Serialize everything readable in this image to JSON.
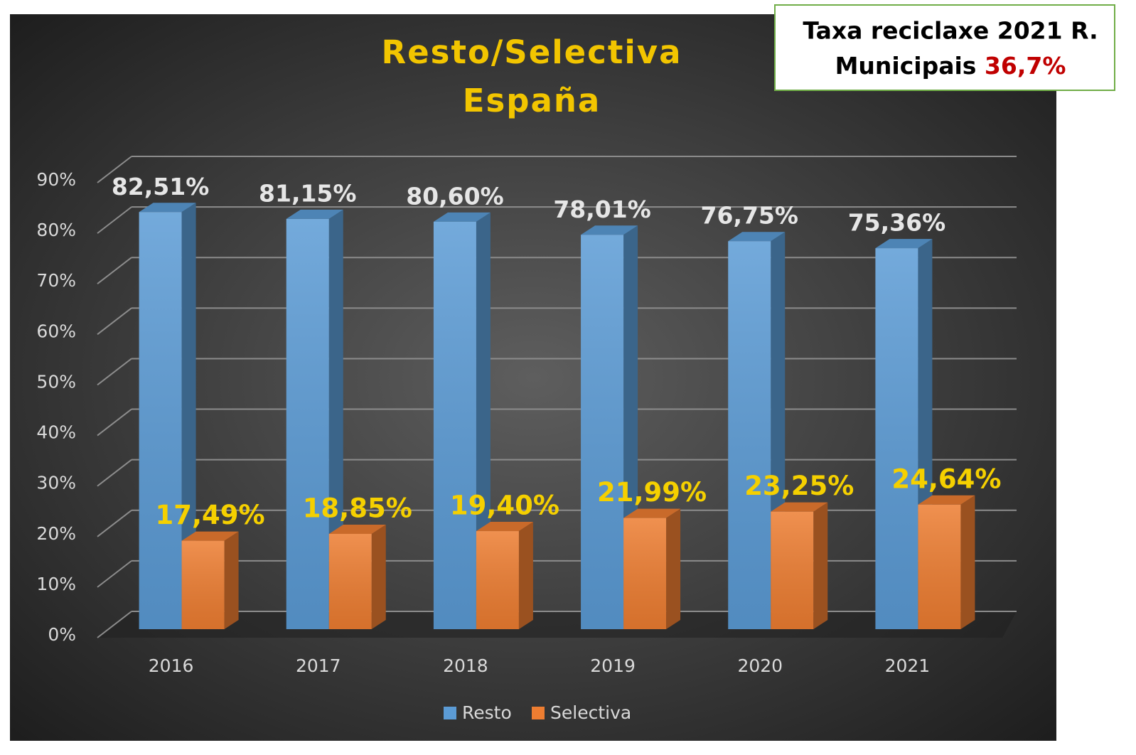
{
  "chart_data": {
    "type": "bar3d",
    "title": [
      "Resto/Selectiva",
      "España"
    ],
    "categories": [
      "2016",
      "2017",
      "2018",
      "2019",
      "2020",
      "2021"
    ],
    "series": [
      {
        "name": "Resto",
        "color": "#5b9bd5",
        "values": [
          82.51,
          81.15,
          80.6,
          78.01,
          76.75,
          75.36
        ],
        "value_labels": [
          "82,51%",
          "81,15%",
          "80,60%",
          "78,01%",
          "76,75%",
          "75,36%"
        ]
      },
      {
        "name": "Selectiva",
        "color": "#ed7d31",
        "values": [
          17.49,
          18.85,
          19.4,
          21.99,
          23.25,
          24.64
        ],
        "value_labels": [
          "17,49%",
          "18,85%",
          "19,40%",
          "21,99%",
          "23,25%",
          "24,64%"
        ]
      }
    ],
    "ylim": [
      0,
      90
    ],
    "yticks": [
      {
        "value": 0,
        "label": "0%"
      },
      {
        "value": 10,
        "label": "10%"
      },
      {
        "value": 20,
        "label": "20%"
      },
      {
        "value": 30,
        "label": "30%"
      },
      {
        "value": 40,
        "label": "40%"
      },
      {
        "value": 50,
        "label": "50%"
      },
      {
        "value": 60,
        "label": "60%"
      },
      {
        "value": 70,
        "label": "70%"
      },
      {
        "value": 80,
        "label": "80%"
      },
      {
        "value": 90,
        "label": "90%"
      }
    ],
    "grid": true,
    "legend": "bottom",
    "annotation": {
      "lines": [
        "Taxa reciclaxe 2021 R.",
        "Municipais"
      ],
      "highlight": "36,7%",
      "highlight_color": "#c00000"
    }
  }
}
